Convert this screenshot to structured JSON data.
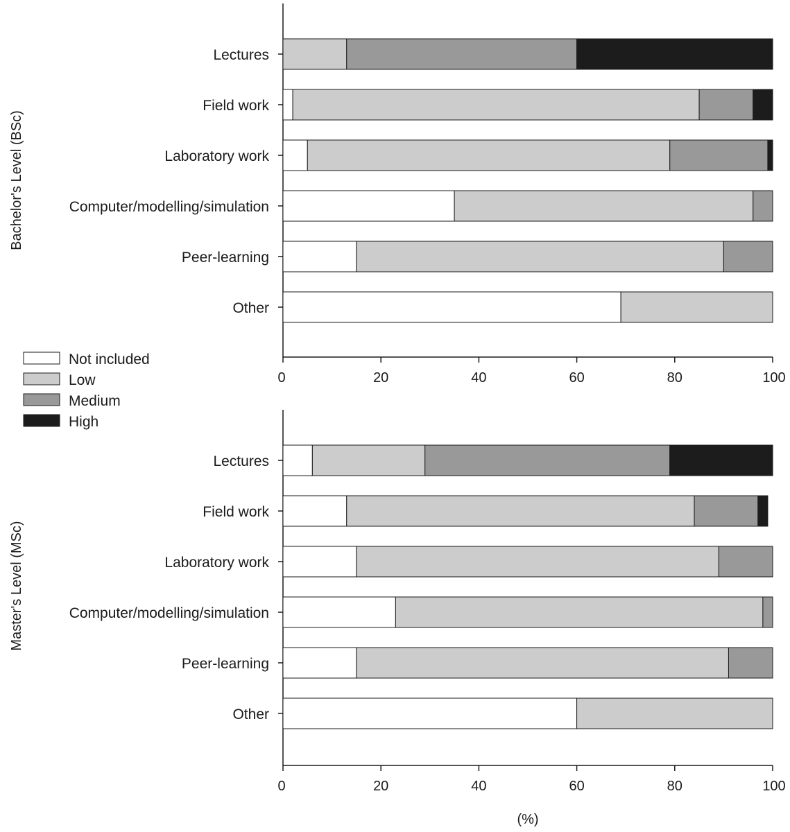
{
  "colors": {
    "Not included": "#ffffff",
    "Low": "#cccccc",
    "Medium": "#999999",
    "High": "#1c1c1c",
    "axis": "#1a1a1a"
  },
  "legend": {
    "placement": "between panels, left",
    "entries": [
      "Not included",
      "Low",
      "Medium",
      "High"
    ]
  },
  "x_axis": {
    "label": "(%)",
    "ticks": [
      "0",
      "20",
      "40",
      "60",
      "80",
      "100"
    ]
  },
  "chart_data": [
    {
      "type": "bar",
      "orientation": "horizontal",
      "stacked": true,
      "group_label": "Bachelor's Level (BSc)",
      "xlabel": "",
      "xlim": [
        0,
        100
      ],
      "categories": [
        "Lectures",
        "Field work",
        "Laboratory work",
        "Computer/modelling/simulation",
        "Peer-learning",
        "Other"
      ],
      "series": [
        {
          "name": "Not included",
          "values": [
            0,
            2,
            5,
            35,
            15,
            69
          ]
        },
        {
          "name": "Low",
          "values": [
            13,
            83,
            74,
            61,
            75,
            31
          ]
        },
        {
          "name": "Medium",
          "values": [
            47,
            11,
            20,
            4,
            10,
            0
          ]
        },
        {
          "name": "High",
          "values": [
            40,
            4,
            1,
            0,
            0,
            0
          ]
        }
      ]
    },
    {
      "type": "bar",
      "orientation": "horizontal",
      "stacked": true,
      "group_label": "Master's Level (MSc)",
      "xlabel": "(%)",
      "xlim": [
        0,
        100
      ],
      "categories": [
        "Lectures",
        "Field work",
        "Laboratory work",
        "Computer/modelling/simulation",
        "Peer-learning",
        "Other"
      ],
      "series": [
        {
          "name": "Not included",
          "values": [
            6,
            13,
            15,
            23,
            15,
            60
          ]
        },
        {
          "name": "Low",
          "values": [
            23,
            71,
            74,
            75,
            76,
            40
          ]
        },
        {
          "name": "Medium",
          "values": [
            50,
            13,
            11,
            2,
            9,
            0
          ]
        },
        {
          "name": "High",
          "values": [
            21,
            2,
            0,
            0,
            0,
            0
          ]
        }
      ]
    }
  ]
}
